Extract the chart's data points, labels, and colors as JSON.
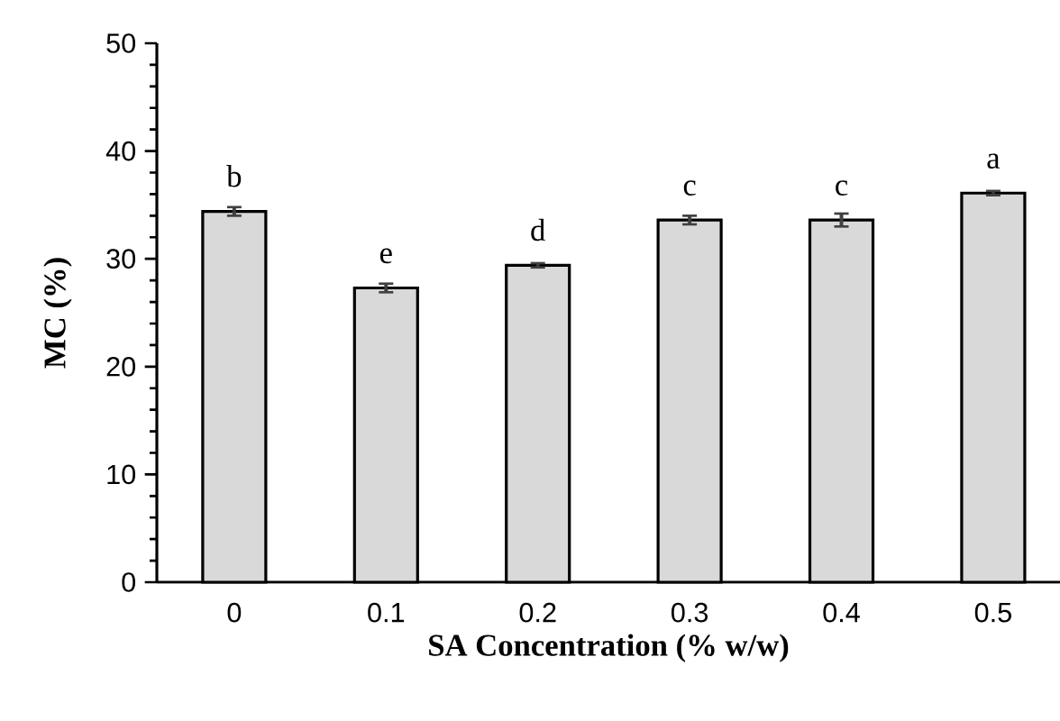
{
  "chart_data": {
    "type": "bar",
    "xlabel": "SA Concentration (% w/w)",
    "ylabel": "MC (%)",
    "categories": [
      "0",
      "0.1",
      "0.2",
      "0.3",
      "0.4",
      "0.5"
    ],
    "values": [
      34.4,
      27.3,
      29.4,
      33.6,
      33.6,
      36.1
    ],
    "errors": [
      0.4,
      0.4,
      0.2,
      0.4,
      0.6,
      0.2
    ],
    "color": "#d9d9d9",
    "ylim": [
      0,
      50
    ],
    "yticks": [
      0,
      10,
      20,
      30,
      40,
      50
    ],
    "annotations": [
      {
        "text": "b",
        "x": "0",
        "y": 34.4
      },
      {
        "text": "e",
        "x": "0.1",
        "y": 27.3
      },
      {
        "text": "d",
        "x": "0.2",
        "y": 29.4
      },
      {
        "text": "c",
        "x": "0.3",
        "y": 33.6
      },
      {
        "text": "c",
        "x": "0.4",
        "y": 33.6
      },
      {
        "text": "a",
        "x": "0.5",
        "y": 36.1
      }
    ]
  }
}
